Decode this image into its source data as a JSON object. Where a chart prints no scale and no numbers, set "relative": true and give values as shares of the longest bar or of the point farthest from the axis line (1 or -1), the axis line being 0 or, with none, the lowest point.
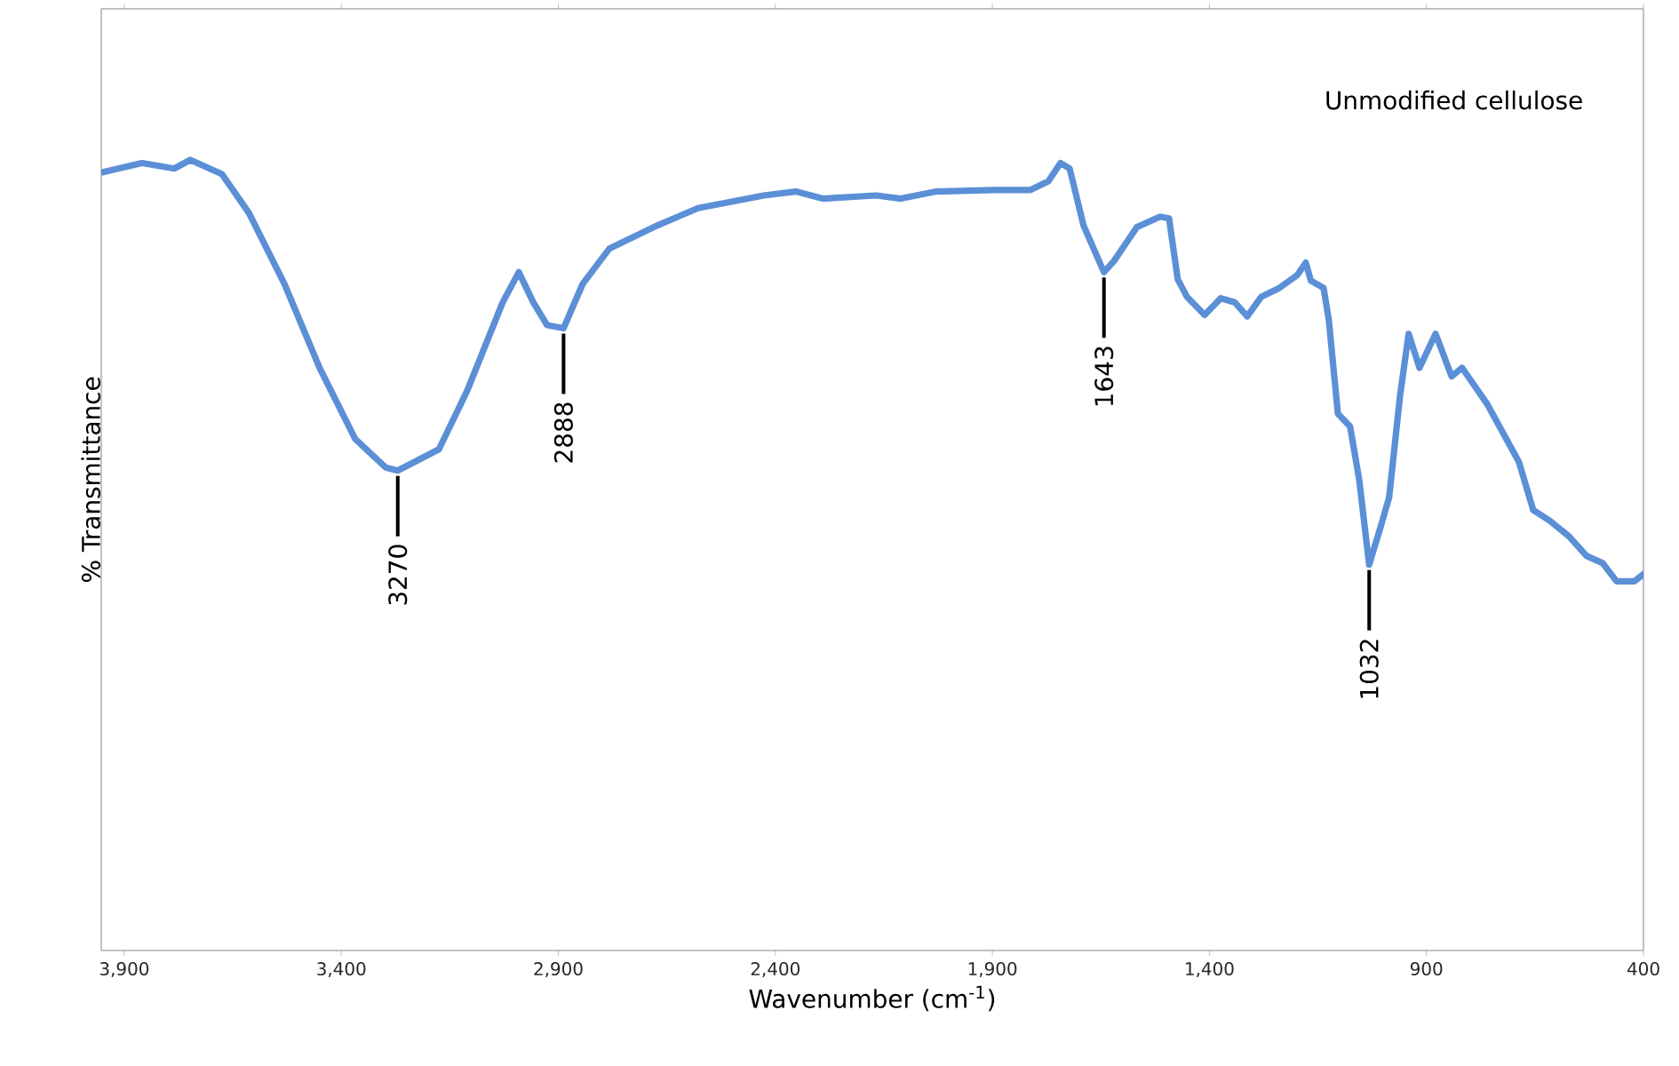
{
  "chart_data": {
    "type": "line",
    "relative": true,
    "title": "Unmodified cellulose",
    "xlabel": "Wavenumber (cm$^{-1}$)",
    "ylabel": "% Transmittance",
    "xlim": [
      3953,
      400
    ],
    "xticks": [
      {
        "value": 3900,
        "label": "3,900"
      },
      {
        "value": 3400,
        "label": "3,400"
      },
      {
        "value": 2900,
        "label": "2,900"
      },
      {
        "value": 2400,
        "label": "2,400"
      },
      {
        "value": 1900,
        "label": "1,900"
      },
      {
        "value": 1400,
        "label": "1,400"
      },
      {
        "value": 900,
        "label": "900"
      },
      {
        "value": 400,
        "label": "400"
      }
    ],
    "grid": false,
    "marker": "none",
    "line_style": "solid",
    "series": [
      {
        "color": "#5b8fd6",
        "x": [
          3953,
          3859,
          3785,
          3748,
          3675,
          3613,
          3531,
          3450,
          3368,
          3298,
          3270,
          3175,
          3110,
          3028,
          2991,
          2958,
          2926,
          2888,
          2844,
          2782,
          2672,
          2578,
          2426,
          2353,
          2291,
          2168,
          2111,
          2029,
          1894,
          1812,
          1771,
          1743,
          1722,
          1690,
          1643,
          1620,
          1567,
          1514,
          1493,
          1473,
          1452,
          1411,
          1374,
          1342,
          1313,
          1280,
          1239,
          1198,
          1178,
          1166,
          1137,
          1125,
          1104,
          1076,
          1055,
          1032,
          1006,
          986,
          961,
          941,
          916,
          879,
          842,
          818,
          761,
          687,
          654,
          617,
          572,
          531,
          494,
          462,
          421,
          400
        ],
        "values": [
          0.984,
          0.996,
          0.989,
          1,
          0.982,
          0.933,
          0.843,
          0.737,
          0.647,
          0.611,
          0.607,
          0.634,
          0.708,
          0.82,
          0.858,
          0.82,
          0.791,
          0.787,
          0.843,
          0.888,
          0.917,
          0.939,
          0.955,
          0.96,
          0.951,
          0.955,
          0.951,
          0.96,
          0.962,
          0.962,
          0.973,
          0.996,
          0.989,
          0.917,
          0.858,
          0.872,
          0.915,
          0.928,
          0.926,
          0.849,
          0.827,
          0.804,
          0.825,
          0.82,
          0.802,
          0.827,
          0.838,
          0.854,
          0.87,
          0.847,
          0.838,
          0.798,
          0.679,
          0.663,
          0.596,
          0.488,
          0.535,
          0.573,
          0.701,
          0.78,
          0.737,
          0.78,
          0.726,
          0.737,
          0.692,
          0.618,
          0.557,
          0.544,
          0.524,
          0.499,
          0.49,
          0.467,
          0.467,
          0.476
        ]
      }
    ],
    "annotations": [
      {
        "text": "3270",
        "x": 3270,
        "y": 0.607
      },
      {
        "text": "2888",
        "x": 2888,
        "y": 0.787
      },
      {
        "text": "1643",
        "x": 1643,
        "y": 0.858
      },
      {
        "text": "1032",
        "x": 1032,
        "y": 0.488
      }
    ]
  }
}
